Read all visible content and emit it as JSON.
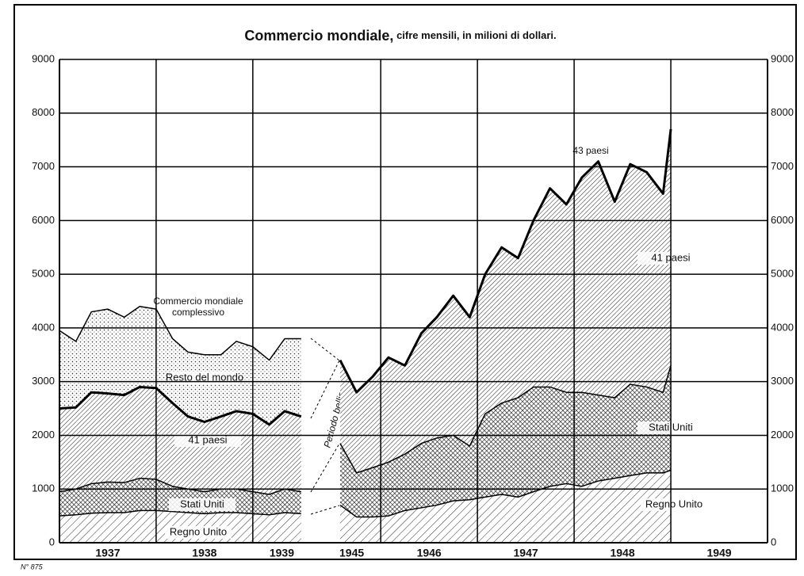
{
  "chart_data": [
    {
      "type": "stacked_area",
      "title": "Commercio mondiale,",
      "subtitle": "cifre mensili, in milioni di dollari.",
      "xlim": [
        1937,
        1939.6
      ],
      "xticks": [
        1937,
        1938,
        1939
      ],
      "ylim": [
        0,
        9000
      ],
      "yticks": [
        0,
        1000,
        2000,
        3000,
        4000,
        5000,
        6000,
        7000,
        8000,
        9000
      ],
      "grid": true,
      "x": [
        1937.0,
        1937.17,
        1937.33,
        1937.5,
        1937.67,
        1937.83,
        1938.0,
        1938.17,
        1938.33,
        1938.5,
        1938.67,
        1938.83,
        1939.0,
        1939.17,
        1939.33,
        1939.5
      ],
      "series": [
        {
          "name": "Regno Unito",
          "color": "#000000",
          "pattern": "hatch-wide",
          "values": [
            500,
            520,
            550,
            560,
            560,
            600,
            600,
            580,
            560,
            540,
            560,
            560,
            540,
            520,
            560,
            540
          ]
        },
        {
          "name": "Stati Uniti",
          "color": "#000000",
          "pattern": "cross",
          "values": [
            450,
            480,
            550,
            570,
            560,
            600,
            580,
            470,
            440,
            410,
            440,
            440,
            410,
            380,
            440,
            410
          ]
        },
        {
          "name": "41 paesi",
          "color": "#000000",
          "pattern": "hatch",
          "values": [
            1550,
            1520,
            1700,
            1650,
            1630,
            1700,
            1700,
            1550,
            1350,
            1300,
            1350,
            1450,
            1450,
            1300,
            1450,
            1400
          ]
        },
        {
          "name": "Resto del mondo",
          "color": "#000000",
          "pattern": "dots",
          "values": [
            1450,
            1230,
            1500,
            1570,
            1450,
            1500,
            1470,
            1200,
            1200,
            1250,
            1150,
            1300,
            1250,
            1200,
            1350,
            1450
          ]
        }
      ],
      "total_label": [
        "Commercio mondiale",
        "complessivo"
      ]
    },
    {
      "type": "stacked_area",
      "xlim": [
        1945.4,
        1950
      ],
      "xticks": [
        1945,
        1946,
        1947,
        1948,
        1949
      ],
      "x": [
        1945.58,
        1945.75,
        1945.92,
        1946.08,
        1946.25,
        1946.42,
        1946.58,
        1946.75,
        1946.92,
        1947.08,
        1947.25,
        1947.42,
        1947.58,
        1947.75,
        1947.92,
        1948.08,
        1948.25,
        1948.42,
        1948.58,
        1948.75,
        1948.92,
        1949.0
      ],
      "series": [
        {
          "name": "Regno Unito",
          "color": "#000000",
          "pattern": "hatch-wide",
          "values": [
            700,
            480,
            480,
            500,
            600,
            650,
            700,
            780,
            800,
            850,
            900,
            850,
            950,
            1050,
            1100,
            1050,
            1150,
            1200,
            1250,
            1300,
            1300,
            1350
          ]
        },
        {
          "name": "Stati Uniti",
          "color": "#000000",
          "pattern": "cross",
          "values": [
            1150,
            820,
            920,
            1000,
            1050,
            1200,
            1250,
            1220,
            1000,
            1550,
            1700,
            1850,
            1950,
            1850,
            1700,
            1750,
            1600,
            1500,
            1700,
            1600,
            1500,
            1950
          ]
        },
        {
          "name": "41 paesi",
          "color": "#000000",
          "pattern": "hatch",
          "values": [
            1550,
            1500,
            1700,
            1950,
            1650,
            2050,
            2250,
            2600,
            2400,
            2600,
            2900,
            2600,
            3100,
            3700,
            3500,
            4000,
            4350,
            3650,
            4100,
            4000,
            3700,
            4400
          ]
        }
      ],
      "total_label": [
        "43 paesi"
      ]
    }
  ],
  "annotations": {
    "war": "Periodo bellico",
    "number": "N° 875"
  }
}
